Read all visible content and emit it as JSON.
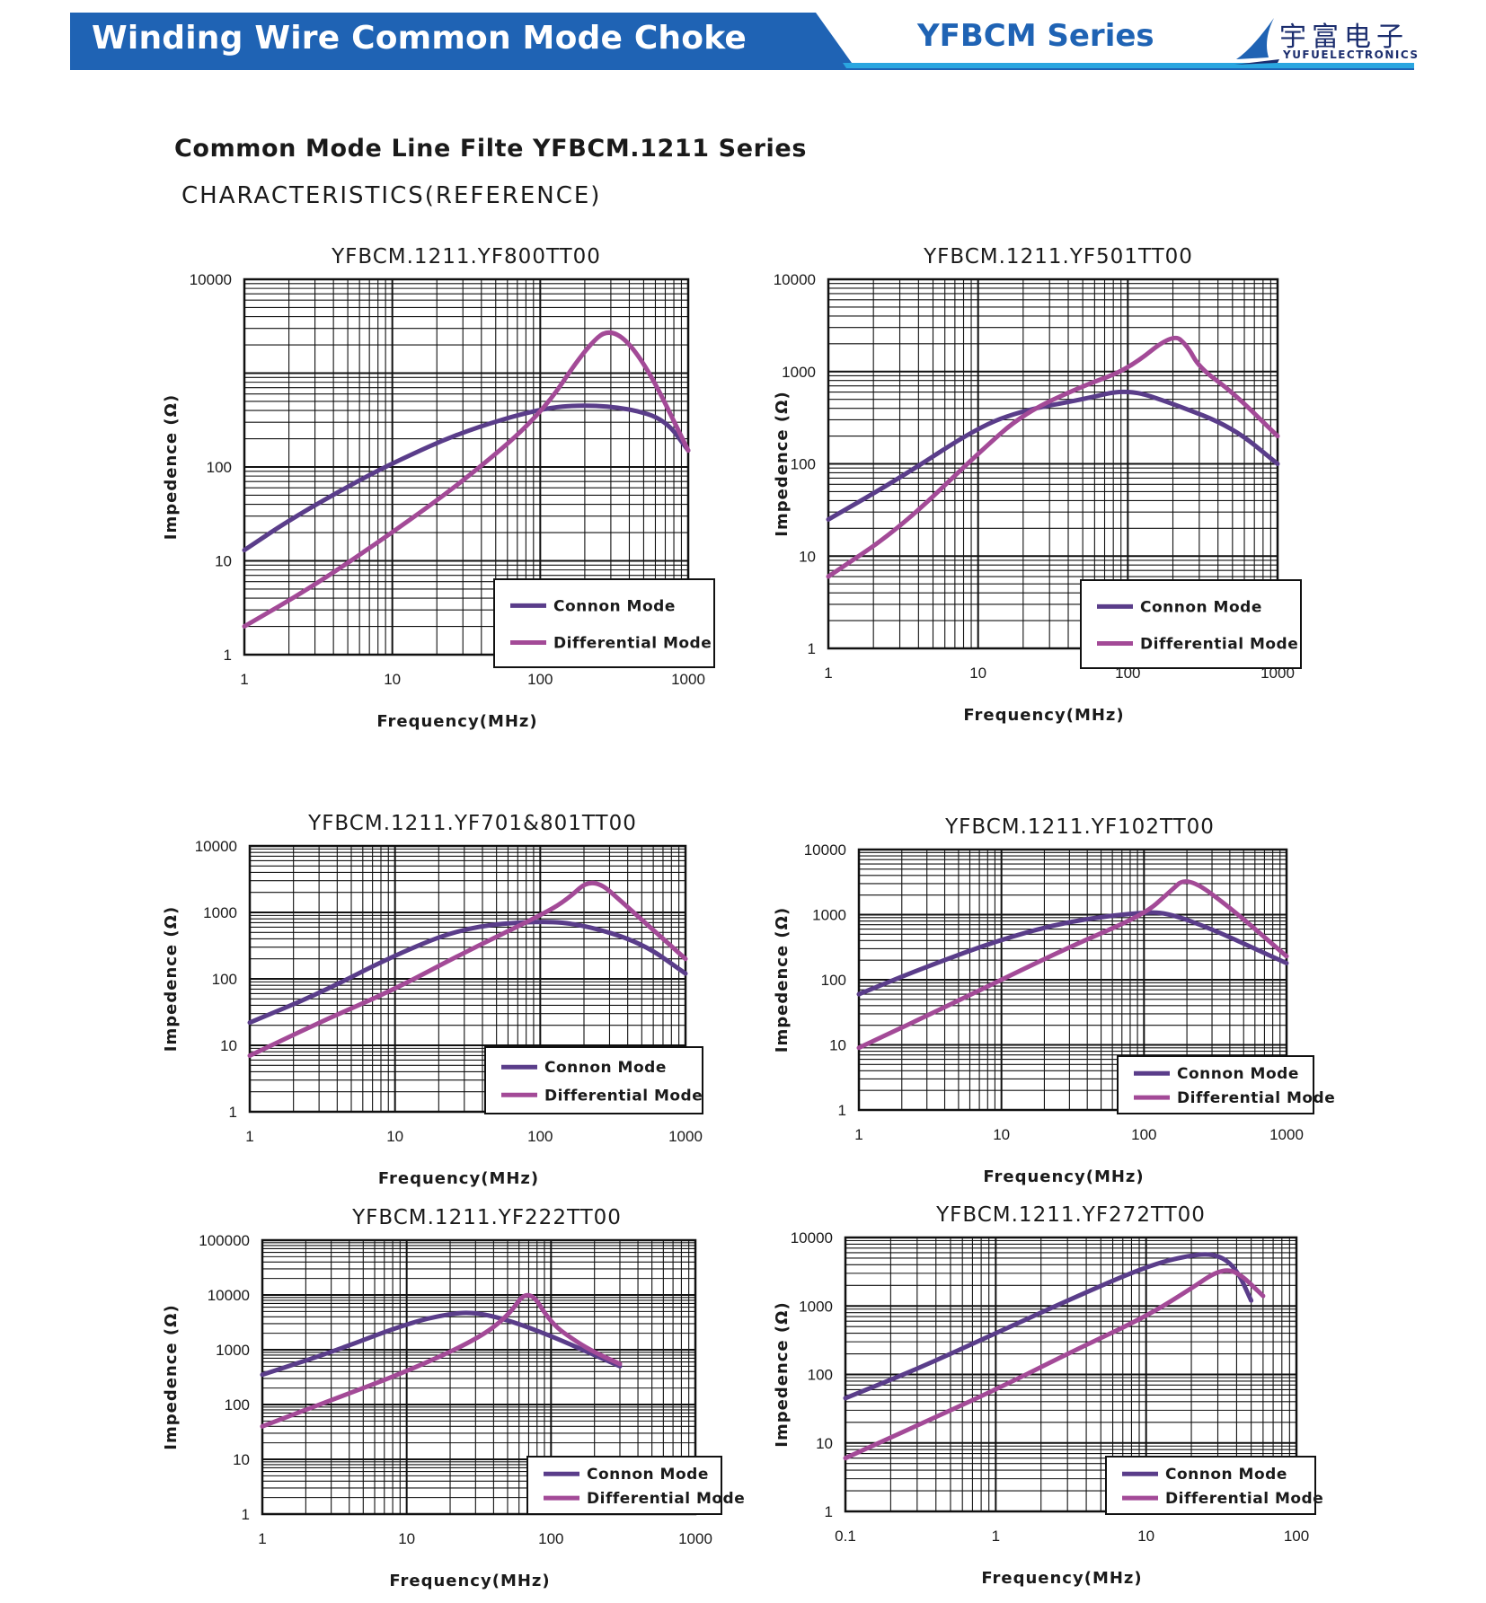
{
  "header": {
    "title": "Winding Wire Common Mode Choke",
    "series": "YFBCM Series",
    "logo_cn": "宇富电子",
    "logo_en": "YUFUELECTRONICS",
    "band_color": "#1f63b4",
    "accent_color": "#2aa6e0"
  },
  "page": {
    "title": "Common Mode Line Filte YFBCM.1211 Series",
    "subtitle": "CHARACTERISTICS(REFERENCE)"
  },
  "colors": {
    "common": "#5a3d8a",
    "differential": "#a34a97"
  },
  "chart_data": [
    {
      "type": "line",
      "title": "YFBCM.1211.YF800TT00",
      "xlabel": "Frequency(MHz)",
      "ylabel": "Impedence (Ω)",
      "xscale": "log",
      "yscale": "log",
      "xlim": [
        1,
        1000
      ],
      "ylim": [
        1,
        10000
      ],
      "yticks": [
        1,
        10,
        100,
        10000
      ],
      "xticks": [
        1,
        10,
        100,
        1000
      ],
      "grid": true,
      "legend_position": "bottom-right",
      "series": [
        {
          "name": "Connon Mode",
          "x": [
            1,
            2,
            5,
            10,
            30,
            100,
            200,
            400,
            700,
            1000
          ],
          "y": [
            13,
            27,
            62,
            110,
            240,
            420,
            460,
            420,
            320,
            150
          ]
        },
        {
          "name": "Differential Mode",
          "x": [
            1,
            3,
            10,
            30,
            100,
            200,
            300,
            500,
            1000
          ],
          "y": [
            2,
            5.5,
            20,
            70,
            350,
            1800,
            3200,
            1400,
            150
          ]
        }
      ]
    },
    {
      "type": "line",
      "title": "YFBCM.1211.YF501TT00",
      "xlabel": "Frequency(MHz)",
      "ylabel": "Impedence (Ω)",
      "xscale": "log",
      "yscale": "log",
      "xlim": [
        1,
        1000
      ],
      "ylim": [
        1,
        10000
      ],
      "yticks": [
        1,
        10,
        100,
        1000,
        10000
      ],
      "xticks": [
        1,
        10,
        100,
        1000
      ],
      "grid": true,
      "legend_position": "bottom-right",
      "series": [
        {
          "name": "Connon Mode",
          "x": [
            1,
            3,
            10,
            20,
            50,
            100,
            200,
            500,
            1000
          ],
          "y": [
            25,
            70,
            250,
            380,
            500,
            650,
            450,
            250,
            100
          ]
        },
        {
          "name": "Differential Mode",
          "x": [
            1,
            3,
            10,
            20,
            50,
            100,
            200,
            250,
            300,
            500,
            1000
          ],
          "y": [
            6,
            20,
            130,
            350,
            700,
            1050,
            2600,
            1900,
            1100,
            600,
            200
          ]
        }
      ]
    },
    {
      "type": "line",
      "title": "YFBCM.1211.YF701&801TT00",
      "xlabel": "Frequency(MHz)",
      "ylabel": "Impedence (Ω)",
      "xscale": "log",
      "yscale": "log",
      "xlim": [
        1,
        1000
      ],
      "ylim": [
        1,
        10000
      ],
      "yticks": [
        1,
        10,
        100,
        1000,
        10000
      ],
      "xticks": [
        1,
        10,
        100,
        1000
      ],
      "grid": true,
      "legend_position": "bottom-right",
      "series": [
        {
          "name": "Connon Mode",
          "x": [
            1,
            3,
            10,
            30,
            100,
            200,
            500,
            1000
          ],
          "y": [
            22,
            60,
            230,
            600,
            750,
            650,
            350,
            120
          ]
        },
        {
          "name": "Differential Mode",
          "x": [
            1,
            3,
            10,
            30,
            100,
            150,
            230,
            400,
            1000
          ],
          "y": [
            7,
            22,
            70,
            250,
            900,
            1500,
            3500,
            1200,
            200
          ]
        }
      ]
    },
    {
      "type": "line",
      "title": "YFBCM.1211.YF102TT00",
      "xlabel": "Frequency(MHz)",
      "ylabel": "Impedence (Ω)",
      "xscale": "log",
      "yscale": "log",
      "xlim": [
        1,
        1000
      ],
      "ylim": [
        1,
        10000
      ],
      "yticks": [
        1,
        10,
        100,
        1000,
        10000
      ],
      "xticks": [
        1,
        10,
        100,
        1000
      ],
      "grid": true,
      "legend_position": "bottom-right",
      "series": [
        {
          "name": "Connon Mode",
          "x": [
            1,
            3,
            10,
            30,
            100,
            150,
            300,
            600,
            1000
          ],
          "y": [
            60,
            160,
            420,
            800,
            1100,
            1050,
            600,
            300,
            180
          ]
        },
        {
          "name": "Differential Mode",
          "x": [
            1,
            3,
            10,
            30,
            100,
            150,
            200,
            400,
            1000
          ],
          "y": [
            9,
            28,
            100,
            320,
            1000,
            2200,
            3900,
            1300,
            230
          ]
        }
      ]
    },
    {
      "type": "line",
      "title": "YFBCM.1211.YF222TT00",
      "xlabel": "Frequency(MHz)",
      "ylabel": "Impedence (Ω)",
      "xscale": "log",
      "yscale": "log",
      "xlim": [
        1,
        1000
      ],
      "ylim": [
        1,
        100000
      ],
      "yticks": [
        1,
        10,
        100,
        1000,
        10000,
        100000
      ],
      "xticks": [
        1,
        10,
        100,
        1000
      ],
      "grid": true,
      "legend_position": "bottom-right",
      "series": [
        {
          "name": "Connon Mode",
          "x": [
            1,
            3,
            10,
            20,
            30,
            50,
            100,
            200,
            300
          ],
          "y": [
            350,
            900,
            3000,
            4600,
            4800,
            3500,
            1800,
            800,
            500
          ]
        },
        {
          "name": "Differential Mode",
          "x": [
            1,
            3,
            10,
            30,
            50,
            70,
            100,
            150,
            200,
            300
          ],
          "y": [
            40,
            120,
            400,
            1500,
            4000,
            14000,
            3000,
            1400,
            900,
            550
          ]
        }
      ]
    },
    {
      "type": "line",
      "title": "YFBCM.1211.YF272TT00",
      "xlabel": "Frequency(MHz)",
      "ylabel": "Impedence (Ω)",
      "xscale": "log",
      "yscale": "log",
      "xlim": [
        0.1,
        100
      ],
      "ylim": [
        1,
        10000
      ],
      "yticks": [
        1,
        10,
        100,
        1000,
        10000
      ],
      "xticks": [
        0.1,
        1,
        10,
        100
      ],
      "grid": true,
      "legend_position": "bottom-right",
      "series": [
        {
          "name": "Connon Mode",
          "x": [
            0.1,
            0.3,
            1,
            3,
            10,
            20,
            30,
            40,
            50
          ],
          "y": [
            45,
            120,
            400,
            1200,
            3800,
            5600,
            5700,
            3500,
            1200
          ]
        },
        {
          "name": "Differential Mode",
          "x": [
            0.1,
            0.3,
            1,
            3,
            10,
            20,
            30,
            40,
            60
          ],
          "y": [
            6,
            18,
            60,
            200,
            700,
            1800,
            3300,
            3300,
            1400
          ]
        }
      ]
    }
  ]
}
